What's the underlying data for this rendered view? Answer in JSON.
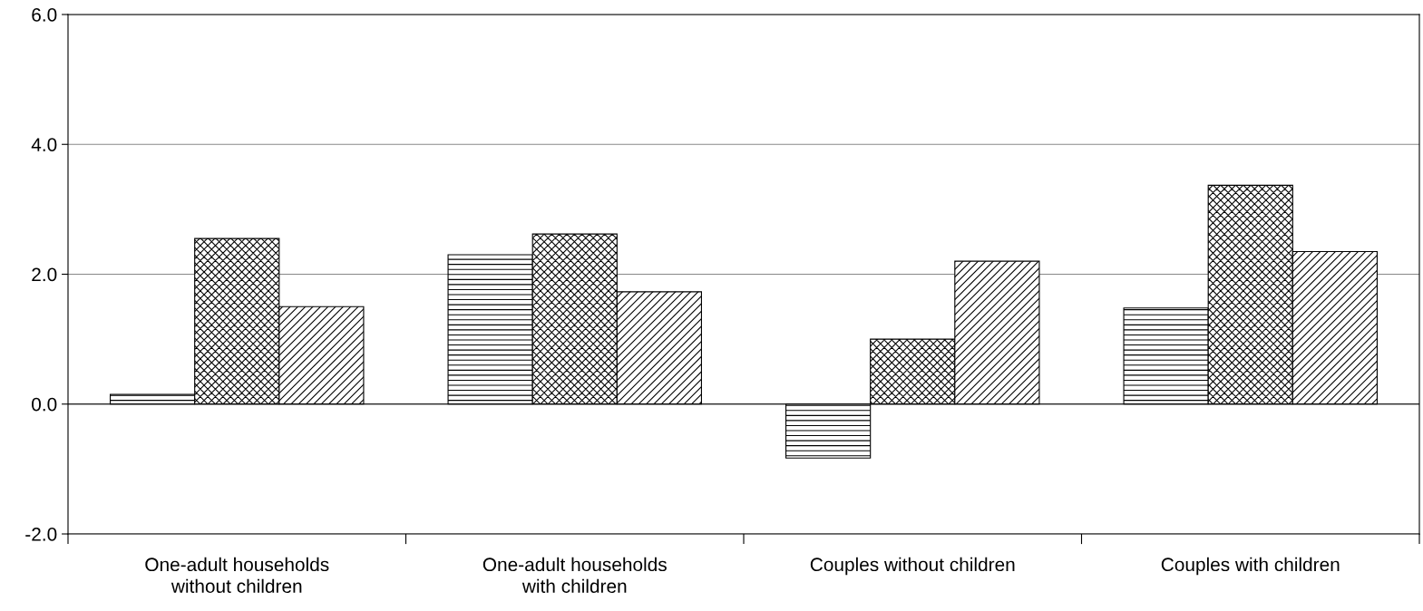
{
  "chart_data": {
    "type": "bar",
    "categories": [
      "One-adult households\nwithout children",
      "One-adult households\nwith children",
      "Couples without children",
      "Couples with children"
    ],
    "series": [
      {
        "color": "#000000",
        "values": [
          0.15,
          2.3,
          -0.83,
          1.48
        ]
      },
      {
        "color": "#000000",
        "values": [
          2.55,
          2.62,
          1.0,
          3.37
        ]
      },
      {
        "color": "#000000",
        "values": [
          1.5,
          1.73,
          2.2,
          2.35
        ]
      }
    ],
    "ylim": [
      -2,
      6
    ],
    "yticks": [
      {
        "value": -2,
        "label": "-2.0"
      },
      {
        "value": 0,
        "label": "0.0"
      },
      {
        "value": 2,
        "label": "2.0"
      },
      {
        "value": 4,
        "label": "4.0"
      },
      {
        "value": 6,
        "label": "6.0"
      }
    ],
    "grid": "y",
    "legend": false
  }
}
